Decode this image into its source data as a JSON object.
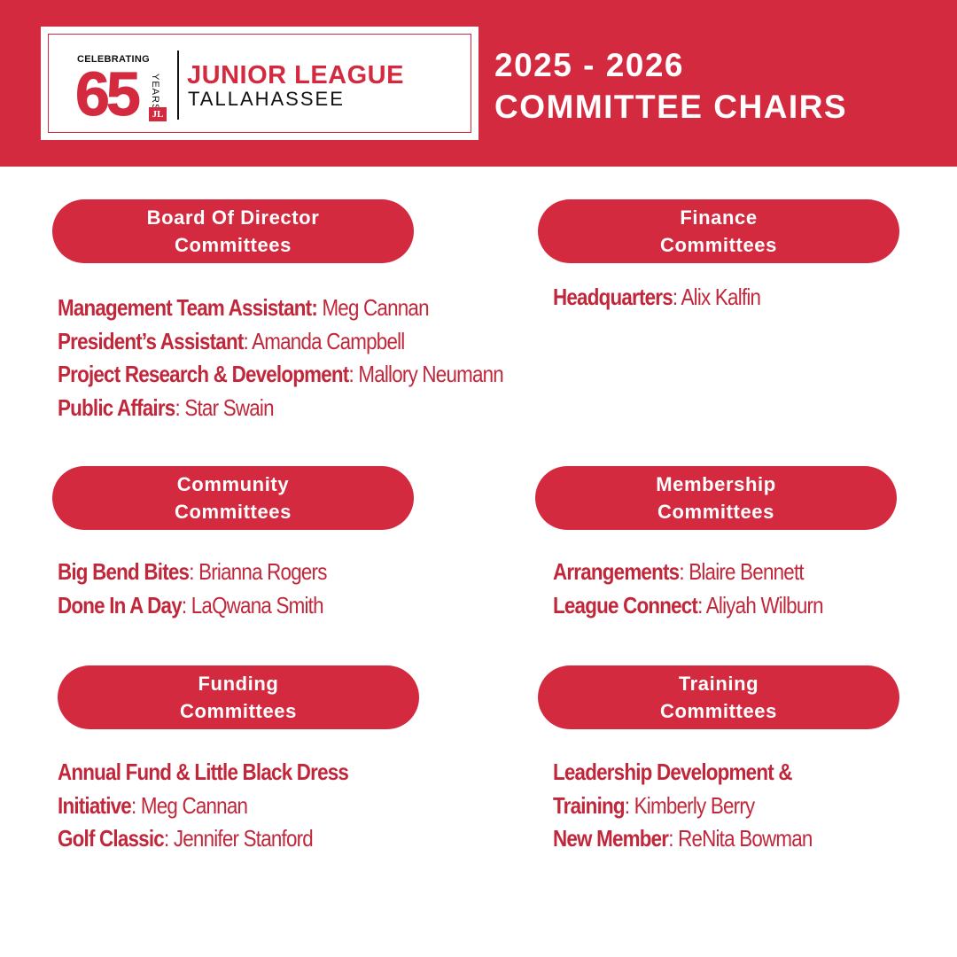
{
  "logo": {
    "celebrating": "CELEBRATING",
    "number": "65",
    "years": "YEARS",
    "mark": "JL",
    "name": "JUNIOR LEAGUE",
    "city": "TALLAHASSEE"
  },
  "header": {
    "title_line1": "2025 - 2026",
    "title_line2": "COMMITTEE CHAIRS"
  },
  "colors": {
    "primary": "#d32a3f",
    "text_red": "#c1273b",
    "background": "#ffffff"
  },
  "sections": {
    "board": {
      "title_line1": "Board Of Director",
      "title_line2": "Committees",
      "items": [
        {
          "role": "Management Team Assistant:",
          "sep": " ",
          "name": "Meg Cannan"
        },
        {
          "role": "President’s Assistant",
          "sep": ": ",
          "name": "Amanda Campbell"
        },
        {
          "role": "Project Research & Development",
          "sep": ": ",
          "name": "Mallory Neumann"
        },
        {
          "role": "Public Affairs",
          "sep": ": ",
          "name": "Star Swain"
        }
      ]
    },
    "finance": {
      "title_line1": "Finance",
      "title_line2": "Committees",
      "items": [
        {
          "role": "Headquarters",
          "sep": ": ",
          "name": "Alix Kalfin"
        }
      ]
    },
    "community": {
      "title_line1": "Community",
      "title_line2": "Committees",
      "items": [
        {
          "role": "Big Bend Bites",
          "sep": ": ",
          "name": "Brianna Rogers"
        },
        {
          "role": "Done In A Day",
          "sep": ": ",
          "name": "LaQwana Smith"
        }
      ]
    },
    "membership": {
      "title_line1": "Membership",
      "title_line2": "Committees",
      "items": [
        {
          "role": "Arrangements",
          "sep": ": ",
          "name": "Blaire Bennett"
        },
        {
          "role": "League Connect",
          "sep": ": ",
          "name": "Aliyah Wilburn"
        }
      ]
    },
    "funding": {
      "title_line1": "Funding",
      "title_line2": "Committees",
      "item1_role_line1": "Annual Fund & Little Black Dress",
      "item1_role_line2": "Initiative",
      "item1_sep": ": ",
      "item1_name": "Meg Cannan",
      "item2_role": "Golf Classic",
      "item2_sep": ": ",
      "item2_name": "Jennifer Stanford"
    },
    "training": {
      "title_line1": "Training",
      "title_line2": "Committees",
      "item1_role_line1": "Leadership Development &",
      "item1_role_line2": "Training",
      "item1_sep": ": ",
      "item1_name": "Kimberly Berry",
      "item2_role": "New Member",
      "item2_sep": ": ",
      "item2_name": "ReNita Bowman"
    }
  }
}
